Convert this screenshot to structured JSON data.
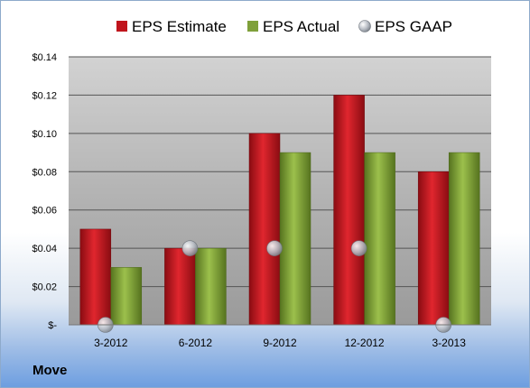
{
  "company": "Move",
  "chart_data": {
    "type": "bar",
    "categories": [
      "3-2012",
      "6-2012",
      "9-2012",
      "12-2012",
      "3-2013"
    ],
    "series": [
      {
        "name": "EPS Estimate",
        "type": "bar",
        "color": "#c0141c",
        "values": [
          0.05,
          0.04,
          0.1,
          0.12,
          0.08
        ]
      },
      {
        "name": "EPS Actual",
        "type": "bar",
        "color": "#7fa03a",
        "values": [
          0.03,
          0.04,
          0.09,
          0.09,
          0.09
        ]
      },
      {
        "name": "EPS GAAP",
        "type": "marker",
        "color": "#9aa0a8",
        "values": [
          0.0,
          0.04,
          0.04,
          0.04,
          0.0
        ]
      }
    ],
    "ylim": [
      0,
      0.14
    ],
    "yticks": [
      0,
      0.02,
      0.04,
      0.06,
      0.08,
      0.1,
      0.12,
      0.14
    ],
    "ytick_labels": [
      "$-",
      "$0.02",
      "$0.04",
      "$0.06",
      "$0.08",
      "$0.10",
      "$0.12",
      "$0.14"
    ],
    "grid": true,
    "legend_position": "top"
  }
}
